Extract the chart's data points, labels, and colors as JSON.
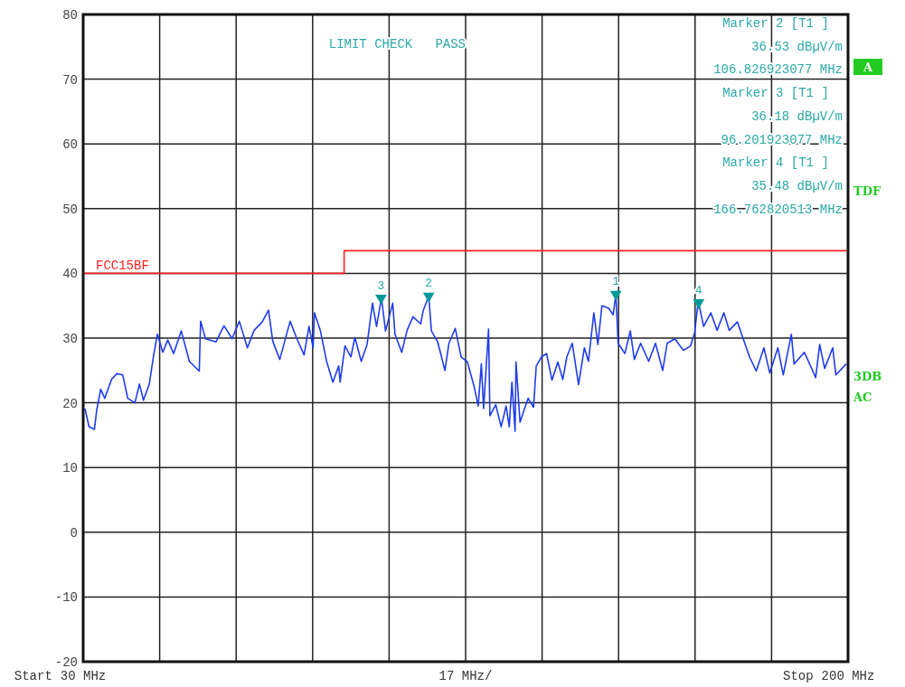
{
  "chart_data": {
    "type": "line",
    "xlabel": "17 MHz/",
    "xlim": [
      30,
      200
    ],
    "ylim": [
      -20,
      80
    ],
    "xticks": [
      {
        "value": 30,
        "label": "30 MHz"
      },
      {
        "value": 47,
        "label": null
      },
      {
        "value": 64,
        "label": null
      },
      {
        "value": 81,
        "label": null
      },
      {
        "value": 98,
        "label": null
      },
      {
        "value": 115,
        "label": null
      },
      {
        "value": 132,
        "label": null
      },
      {
        "value": 149,
        "label": null
      },
      {
        "value": 166,
        "label": null
      },
      {
        "value": 183,
        "label": null
      },
      {
        "value": 200,
        "label": "200 MHz"
      }
    ],
    "yticks": [
      -20,
      -10,
      0,
      10,
      20,
      30,
      40,
      50,
      60,
      70,
      80
    ],
    "grid": true,
    "legend": false,
    "series": [
      {
        "color": "#1f3cf0",
        "x": [
          30.4,
          31.3,
          32.5,
          33.0,
          33.9,
          34.8,
          36.3,
          37.5,
          38.8,
          39.9,
          41.5,
          42.5,
          43.4,
          44.7,
          45.6,
          46.5,
          47.7,
          48.8,
          50.1,
          51.8,
          53.6,
          55.8,
          56.1,
          57.2,
          59.5,
          61.3,
          63.1,
          64.7,
          66.5,
          68.0,
          69.8,
          71.2,
          72.1,
          72.4,
          73.7,
          76.0,
          77.5,
          79.1,
          80.2,
          81.1,
          81.4,
          82.7,
          84.1,
          85.5,
          86.8,
          87.1,
          88.2,
          89.5,
          90.4,
          91.8,
          93.1,
          94.3,
          95.2,
          96.3,
          97.2,
          98.8,
          99.3,
          100.8,
          102.0,
          103.3,
          105.0,
          105.6,
          106.8,
          107.4,
          108.8,
          110.4,
          111.3,
          112.7,
          114.0,
          115.4,
          116.9,
          117.8,
          118.5,
          119.0,
          120.1,
          120.4,
          121.7,
          122.9,
          124.0,
          124.7,
          125.3,
          126.0,
          126.2,
          127.1,
          128.9,
          130.1,
          130.7,
          131.9,
          133.0,
          134.2,
          135.5,
          136.6,
          137.5,
          138.7,
          140.1,
          141.4,
          142.3,
          143.5,
          144.4,
          145.3,
          146.8,
          147.8,
          148.4,
          148.9,
          150.4,
          151.6,
          152.5,
          153.9,
          155.7,
          157.2,
          158.8,
          159.8,
          161.5,
          163.4,
          165.0,
          165.9,
          166.7,
          167.9,
          169.5,
          170.9,
          172.4,
          173.6,
          175.4,
          176.7,
          178.1,
          179.6,
          181.3,
          182.6,
          184.4,
          185.6,
          187.4,
          188.0,
          190.3,
          192.8,
          193.7,
          194.8,
          196.6,
          197.3,
          199.6
        ],
        "values": [
          19.1,
          16.3,
          15.9,
          18.8,
          22.1,
          20.7,
          23.6,
          24.5,
          24.3,
          20.7,
          20.0,
          22.9,
          20.4,
          22.9,
          27.1,
          30.6,
          27.8,
          29.7,
          27.6,
          31.1,
          26.4,
          24.9,
          32.6,
          29.9,
          29.4,
          31.9,
          29.9,
          32.6,
          28.5,
          31.2,
          32.5,
          34.3,
          29.7,
          29.0,
          26.7,
          32.6,
          29.9,
          27.4,
          31.8,
          28.5,
          33.9,
          31.2,
          26.4,
          23.2,
          25.7,
          23.2,
          28.8,
          27.1,
          30.1,
          26.4,
          29.0,
          35.4,
          31.8,
          36.2,
          31.1,
          35.4,
          30.6,
          27.8,
          31.2,
          33.3,
          32.2,
          34.3,
          36.5,
          31.1,
          29.4,
          25.0,
          29.2,
          31.5,
          27.1,
          26.3,
          22.5,
          19.5,
          26.0,
          19.1,
          31.4,
          18.0,
          19.7,
          16.3,
          19.5,
          16.3,
          23.2,
          15.6,
          26.3,
          17.0,
          20.7,
          19.3,
          25.7,
          27.1,
          27.6,
          23.5,
          26.3,
          23.6,
          27.1,
          29.2,
          22.8,
          28.5,
          26.4,
          33.9,
          29.0,
          35.0,
          34.6,
          33.6,
          36.8,
          29.2,
          27.6,
          31.1,
          26.7,
          29.2,
          26.4,
          29.2,
          25.0,
          29.2,
          29.9,
          28.1,
          28.8,
          30.8,
          35.7,
          31.8,
          33.9,
          31.2,
          33.9,
          31.2,
          32.5,
          29.9,
          27.1,
          24.9,
          28.5,
          24.6,
          28.5,
          24.3,
          30.6,
          26.0,
          27.8,
          23.9,
          29.0,
          25.3,
          28.5,
          24.3,
          26.0
        ]
      },
      {
        "type": "step",
        "name": "FCC15BF",
        "color": "#ff2020",
        "x": [
          30,
          88,
          200
        ],
        "values": [
          40,
          43.5,
          43.5
        ]
      },
      {
        "type": "scatter",
        "color": "#009999",
        "marker": "triangle",
        "x": [
          148.4,
          106.8,
          96.2,
          166.8
        ],
        "values": [
          36.8,
          36.5,
          36.2,
          35.5
        ]
      }
    ],
    "annotations": [
      {
        "text": "1",
        "x": 148.4,
        "y": 36.8
      },
      {
        "text": "2",
        "x": 106.8,
        "y": 36.5
      },
      {
        "text": "3",
        "x": 96.2,
        "y": 36.2
      },
      {
        "text": "4",
        "x": 166.8,
        "y": 35.5
      },
      "LIMIT CHECK   PASS",
      "Marker 2 [T1 ]",
      "36.53 dBµV/m",
      "106.826923077 MHz",
      "Marker 3 [T1 ]",
      "36.18 dBµV/m",
      "96.201923077 MHz",
      "Marker 4 [T1 ]",
      "35.48 dBµV/m",
      "166.762820513 MHz",
      "A",
      "TDF",
      "3DB",
      "AC",
      "Start",
      "Stop"
    ]
  }
}
